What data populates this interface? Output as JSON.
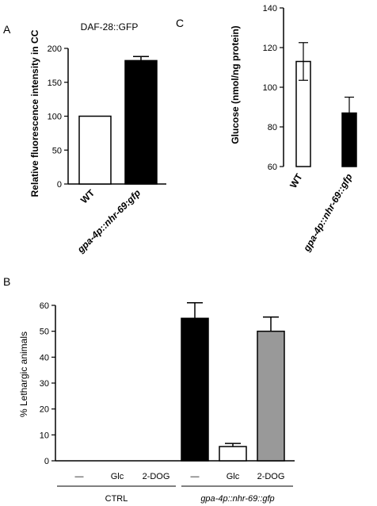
{
  "chart_data": [
    {
      "panel": "A",
      "type": "bar",
      "title": "DAF-28::GFP",
      "ylabel": "Relative fluorescence intensity in CC",
      "xlabel": "",
      "ylim": [
        0,
        200
      ],
      "yticks": [
        0,
        50,
        100,
        150,
        200
      ],
      "categories": [
        "WT",
        "gpa-4p::nhr-69:gfp"
      ],
      "values": [
        100,
        182
      ],
      "errors": [
        0,
        6
      ],
      "bar_colors": [
        "#ffffff",
        "#000000"
      ]
    },
    {
      "panel": "C",
      "type": "bar",
      "title": "",
      "ylabel": "Glucose (nmol/ng protein)",
      "xlabel": "",
      "ylim": [
        60,
        140
      ],
      "yticks": [
        60,
        80,
        100,
        120,
        140
      ],
      "categories": [
        "WT",
        "gpa-4p::nhr-69::gfp"
      ],
      "values": [
        113,
        87
      ],
      "errors": [
        9.5,
        8
      ],
      "bar_colors": [
        "#ffffff",
        "#000000"
      ]
    },
    {
      "panel": "B",
      "type": "bar",
      "title": "",
      "ylabel": "% Lethargic animals",
      "xlabel": "",
      "ylim": [
        0,
        60
      ],
      "yticks": [
        0,
        10,
        20,
        30,
        40,
        50,
        60
      ],
      "categories": [
        "—",
        "Glc",
        "2-DOG",
        "—",
        "Glc",
        "2-DOG"
      ],
      "groups": [
        {
          "label": "CTRL",
          "italic": false,
          "indices": [
            0,
            1,
            2
          ]
        },
        {
          "label": "gpa-4p::nhr-69::gfp",
          "italic": true,
          "indices": [
            3,
            4,
            5
          ]
        }
      ],
      "values": [
        0,
        0,
        0,
        55,
        5.5,
        50
      ],
      "errors": [
        0,
        0,
        0,
        6,
        1.2,
        5.5
      ],
      "bar_colors": [
        "#ffffff",
        "#ffffff",
        "#ffffff",
        "#000000",
        "#ffffff",
        "#999999"
      ]
    }
  ]
}
